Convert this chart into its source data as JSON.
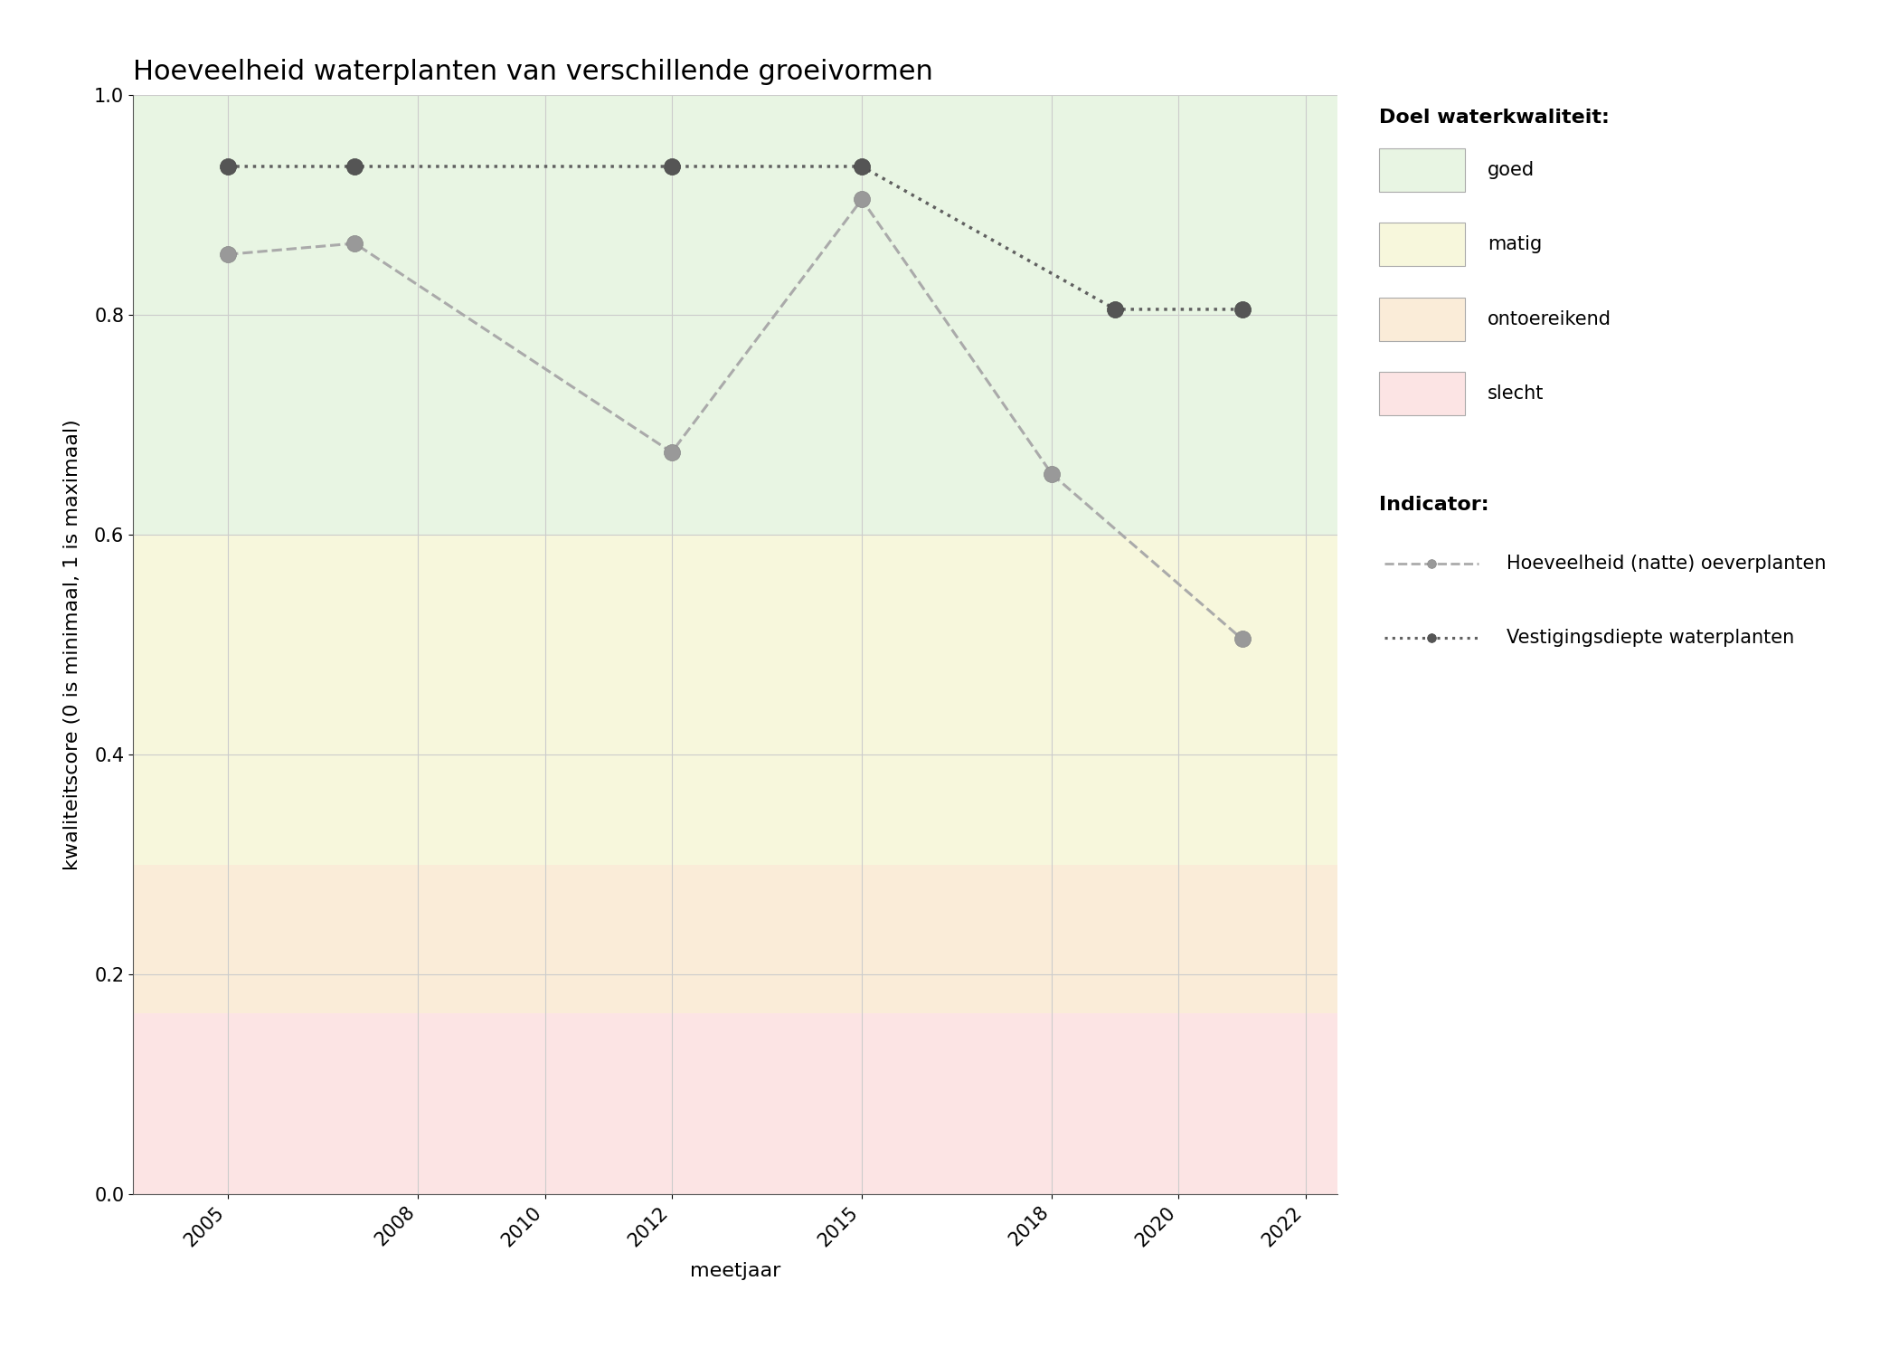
{
  "title": "Hoeveelheid waterplanten van verschillende groeivormen",
  "xlabel": "meetjaar",
  "ylabel": "kwaliteitscore (0 is minimaal, 1 is maximaal)",
  "xlim": [
    2003.5,
    2022.5
  ],
  "ylim": [
    0.0,
    1.0
  ],
  "xticks": [
    2005,
    2008,
    2010,
    2012,
    2015,
    2018,
    2020,
    2022
  ],
  "yticks": [
    0.0,
    0.2,
    0.4,
    0.6,
    0.8,
    1.0
  ],
  "bg_color": "#ffffff",
  "zones": [
    {
      "label": "goed",
      "ymin": 0.6,
      "ymax": 1.0,
      "color": "#e8f5e3"
    },
    {
      "label": "matig",
      "ymin": 0.3,
      "ymax": 0.6,
      "color": "#f7f7dc"
    },
    {
      "label": "ontoereikend",
      "ymin": 0.165,
      "ymax": 0.3,
      "color": "#faecd8"
    },
    {
      "label": "slecht",
      "ymin": 0.0,
      "ymax": 0.165,
      "color": "#fce4e4"
    }
  ],
  "series": [
    {
      "name": "Hoeveelheid (natte) oeverplanten",
      "x": [
        2005,
        2007,
        2012,
        2015,
        2018,
        2021
      ],
      "y": [
        0.855,
        0.865,
        0.675,
        0.905,
        0.655,
        0.505
      ],
      "linestyle": "--",
      "color": "#aaaaaa",
      "marker": "o",
      "markersize": 13,
      "linewidth": 2.2,
      "markerfacecolor": "#999999",
      "markeredgecolor": "#888888",
      "markeredgewidth": 0.5,
      "zorder": 5
    },
    {
      "name": "Vestigingsdiepte waterplanten",
      "x": [
        2005,
        2007,
        2012,
        2015,
        2019,
        2021
      ],
      "y": [
        0.935,
        0.935,
        0.935,
        0.935,
        0.805,
        0.805
      ],
      "linestyle": ":",
      "color": "#606060",
      "marker": "o",
      "markersize": 13,
      "linewidth": 2.5,
      "markerfacecolor": "#555555",
      "markeredgecolor": "#444444",
      "markeredgewidth": 0.5,
      "zorder": 6
    }
  ],
  "legend_title_quality": "Doel waterkwaliteit:",
  "legend_title_indicator": "Indicator:",
  "grid_color": "#cccccc",
  "grid_linewidth": 0.8,
  "title_fontsize": 22,
  "label_fontsize": 16,
  "tick_fontsize": 15,
  "legend_fontsize": 15,
  "legend_title_fontsize": 16
}
